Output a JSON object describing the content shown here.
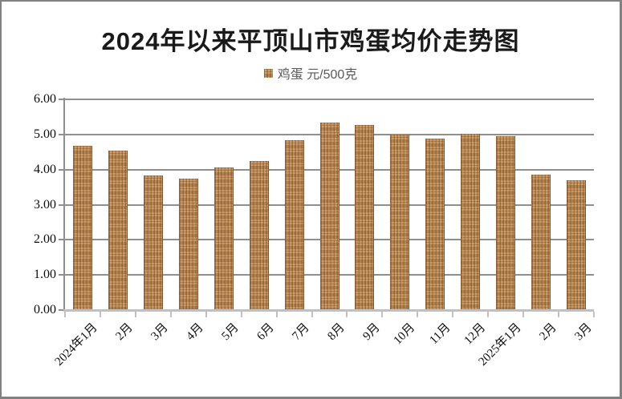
{
  "chart_data": {
    "type": "bar",
    "title": "2024年以来平顶山市鸡蛋均价走势图",
    "legend": {
      "series_label": "鸡蛋 元/500克",
      "series_name": "鸡蛋",
      "unit": "元/500克",
      "position": "top"
    },
    "categories": [
      "2024年1月",
      "2月",
      "3月",
      "4月",
      "5月",
      "6月",
      "7月",
      "8月",
      "9月",
      "10月",
      "11月",
      "12月",
      "2025年1月",
      "2月",
      "3月"
    ],
    "values": [
      4.68,
      4.53,
      3.84,
      3.75,
      4.07,
      4.25,
      4.84,
      5.34,
      5.28,
      4.99,
      4.88,
      5.01,
      4.95,
      3.86,
      3.7
    ],
    "xlabel": "",
    "ylabel": "",
    "ylim": [
      0,
      6
    ],
    "ytick_step": 1,
    "ytick_labels": [
      "0.00",
      "1.00",
      "2.00",
      "3.00",
      "4.00",
      "5.00",
      "6.00"
    ],
    "grid": true,
    "colors": {
      "bar_fill": "#C6945C",
      "bar_texture_dark": "#5E3615",
      "gridline": "#8F8F8F",
      "baseline": "#C0C0C0",
      "title_text": "#1A1A1A",
      "legend_text": "#595959",
      "tick_text": "#0D0D0D",
      "frame_border": "#818181",
      "background": "#FFFFFF"
    }
  },
  "layout_note": "bar chart, gridlines on, legend above plot centered, x labels rotated 45deg"
}
